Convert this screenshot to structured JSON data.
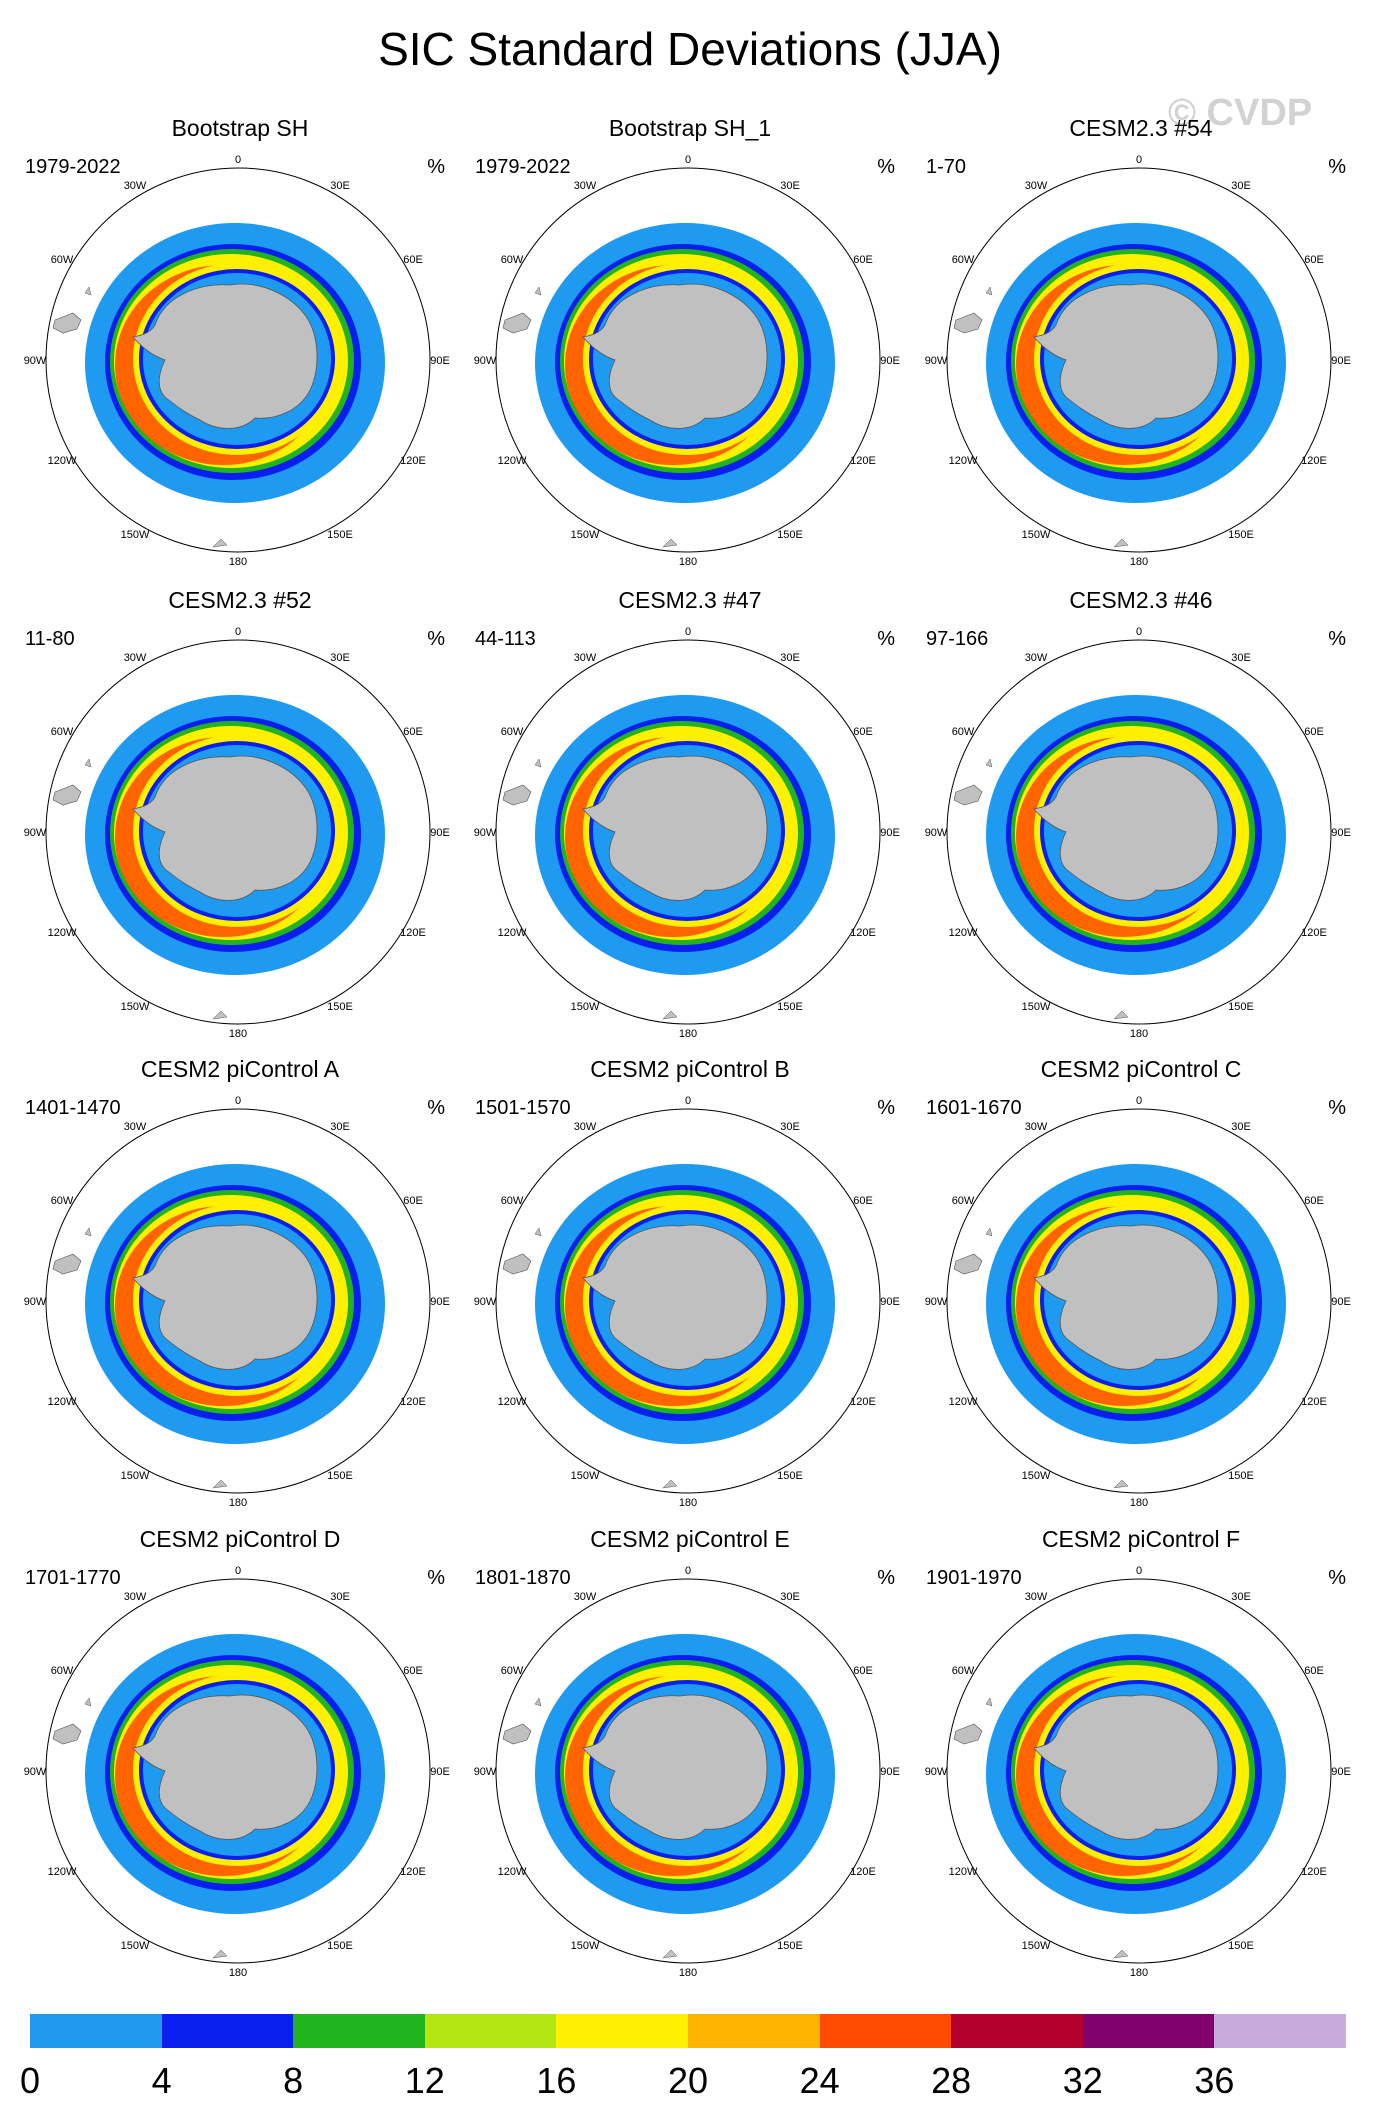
{
  "figure_title": "SIC Standard Deviations (JJA)",
  "watermark": "© CVDP",
  "map_labels": {
    "lon_0": "0",
    "lon_30E": "30E",
    "lon_60E": "60E",
    "lon_90E": "90E",
    "lon_120E": "120E",
    "lon_150E": "150E",
    "lon_180": "180",
    "lon_150W": "150W",
    "lon_120W": "120W",
    "lon_90W": "90W",
    "lon_60W": "60W",
    "lon_30W": "30W"
  },
  "panels": [
    {
      "title": "Bootstrap SH",
      "years": "1979-2022",
      "units": "%"
    },
    {
      "title": "Bootstrap SH_1",
      "years": "1979-2022",
      "units": "%"
    },
    {
      "title": "CESM2.3 #54",
      "years": "1-70",
      "units": "%"
    },
    {
      "title": "CESM2.3 #52",
      "years": "11-80",
      "units": "%"
    },
    {
      "title": "CESM2.3 #47",
      "years": "44-113",
      "units": "%"
    },
    {
      "title": "CESM2.3 #46",
      "years": "97-166",
      "units": "%"
    },
    {
      "title": "CESM2 piControl A",
      "years": "1401-1470",
      "units": "%"
    },
    {
      "title": "CESM2 piControl B",
      "years": "1501-1570",
      "units": "%"
    },
    {
      "title": "CESM2 piControl C",
      "years": "1601-1670",
      "units": "%"
    },
    {
      "title": "CESM2 piControl D",
      "years": "1701-1770",
      "units": "%"
    },
    {
      "title": "CESM2 piControl E",
      "years": "1801-1870",
      "units": "%"
    },
    {
      "title": "CESM2 piControl F",
      "years": "1901-1970",
      "units": "%"
    }
  ],
  "colorbar": {
    "labels": [
      "0",
      "4",
      "8",
      "12",
      "16",
      "20",
      "24",
      "28",
      "32",
      "36"
    ],
    "colors": [
      "#1e9bf0",
      "#0a1ef0",
      "#22b41e",
      "#b4e614",
      "#fff000",
      "#ffb400",
      "#ff4b00",
      "#b4002d",
      "#82006e",
      "#c8aadc"
    ]
  }
}
